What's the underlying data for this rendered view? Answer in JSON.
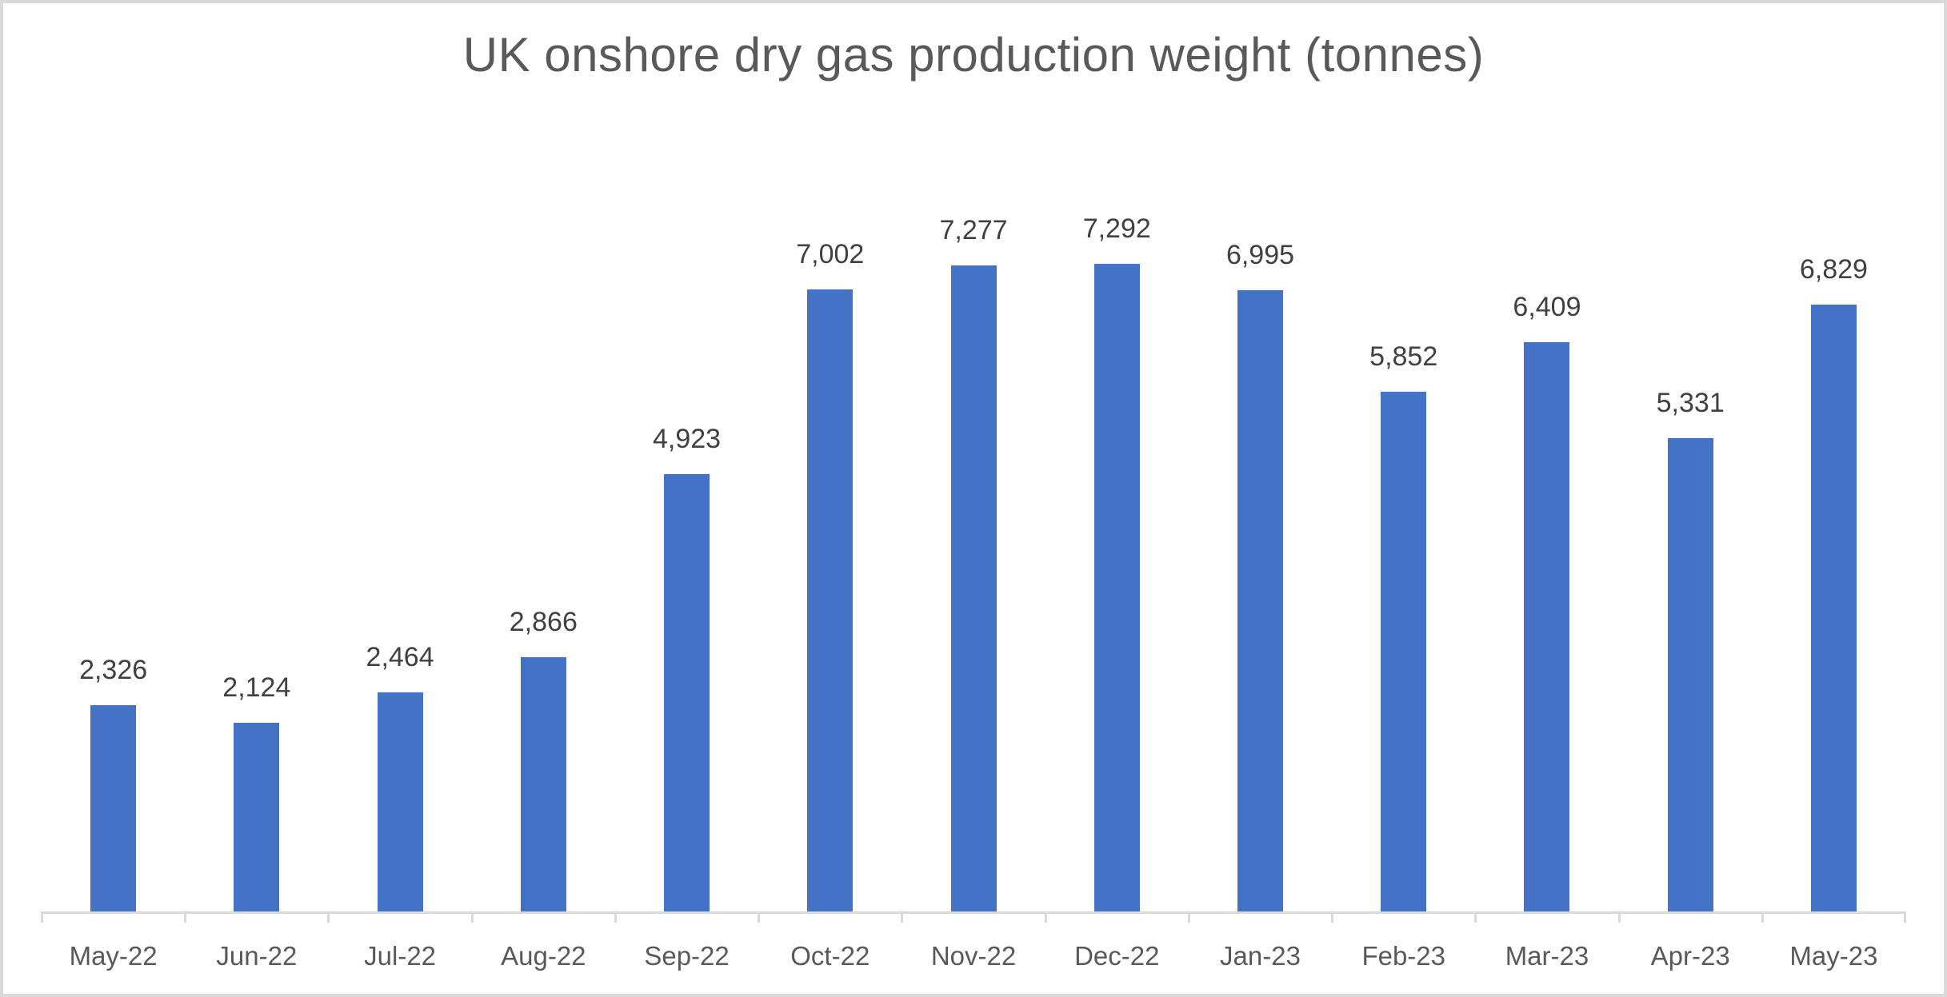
{
  "chart_data": {
    "type": "bar",
    "title": "UK onshore dry gas production weight (tonnes)",
    "categories": [
      "May-22",
      "Jun-22",
      "Jul-22",
      "Aug-22",
      "Sep-22",
      "Oct-22",
      "Nov-22",
      "Dec-22",
      "Jan-23",
      "Feb-23",
      "Mar-23",
      "Apr-23",
      "May-23"
    ],
    "values": [
      2326,
      2124,
      2464,
      2866,
      4923,
      7002,
      7277,
      7292,
      6995,
      5852,
      6409,
      5331,
      6829
    ],
    "data_labels": [
      "2,326",
      "2,124",
      "2,464",
      "2,866",
      "4,923",
      "7,002",
      "7,277",
      "7,292",
      "6,995",
      "5,852",
      "6,409",
      "5,331",
      "6,829"
    ],
    "xlabel": "",
    "ylabel": "",
    "ylim": [
      0,
      8000
    ],
    "grid": false,
    "legend": false,
    "data_labels_shown": true,
    "colors": {
      "bar": "#4472C4",
      "title": "#595959",
      "data_label": "#404040",
      "tick_label": "#595959",
      "axis_line": "#D9D9D9",
      "background": "#FFFFFF",
      "border": "#D9D9D9"
    }
  }
}
